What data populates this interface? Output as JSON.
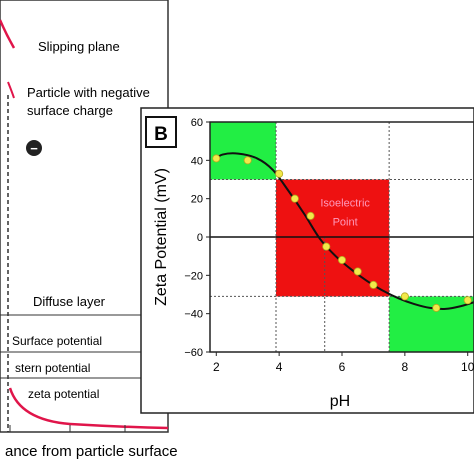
{
  "left_panel": {
    "slipping_plane": "Slipping plane",
    "particle_label_1": "Particle with negative",
    "particle_label_2": "surface charge",
    "particle_symbol": "−",
    "diffuse_layer": "Diffuse layer",
    "surface_potential": "Surface potential",
    "stern_potential": "stern potential",
    "zeta_potential": "zeta potential",
    "xlabel": "ance from particle surface"
  },
  "chart_data": {
    "type": "scatter",
    "panel_label": "B",
    "xlabel": "pH",
    "ylabel": "Zeta Potential (mV)",
    "xlim": [
      1.8,
      10.2
    ],
    "ylim": [
      -60,
      60
    ],
    "x_ticks": [
      2,
      4,
      6,
      8,
      10
    ],
    "x_tick_labels": [
      "2",
      "4",
      "6",
      "8",
      "10"
    ],
    "y_ticks": [
      -60,
      -40,
      -20,
      0,
      20,
      40,
      60
    ],
    "y_tick_labels": [
      "−60",
      "−40",
      "−20",
      "0",
      "20",
      "40",
      "60"
    ],
    "points": [
      {
        "x": 2.0,
        "y": 41
      },
      {
        "x": 3.0,
        "y": 40
      },
      {
        "x": 4.0,
        "y": 33
      },
      {
        "x": 4.5,
        "y": 20
      },
      {
        "x": 5.0,
        "y": 11
      },
      {
        "x": 5.5,
        "y": -5
      },
      {
        "x": 6.0,
        "y": -12
      },
      {
        "x": 6.5,
        "y": -18
      },
      {
        "x": 7.0,
        "y": -25
      },
      {
        "x": 8.0,
        "y": -31
      },
      {
        "x": 9.0,
        "y": -37
      },
      {
        "x": 10.0,
        "y": -33
      }
    ],
    "curve": [
      [
        1.9,
        40
      ],
      [
        2.2,
        43
      ],
      [
        2.7,
        43.5
      ],
      [
        3.3,
        41
      ],
      [
        3.8,
        35
      ],
      [
        4.3,
        24
      ],
      [
        4.8,
        12
      ],
      [
        5.3,
        -1
      ],
      [
        5.8,
        -10
      ],
      [
        6.3,
        -17
      ],
      [
        6.8,
        -23
      ],
      [
        7.3,
        -28
      ],
      [
        7.8,
        -32
      ],
      [
        8.3,
        -35
      ],
      [
        8.8,
        -37
      ],
      [
        9.3,
        -37.5
      ],
      [
        9.8,
        -36
      ],
      [
        10.2,
        -34
      ]
    ],
    "annotation_line1": "Isoelectric",
    "annotation_line2": "Point",
    "regions": [
      {
        "name": "green-top",
        "x0": 1.8,
        "x1": 3.9,
        "y0": 30,
        "y1": 60,
        "color": "#22ee44"
      },
      {
        "name": "red-middle",
        "x0": 3.9,
        "x1": 7.5,
        "y0": -31,
        "y1": 30,
        "color": "#ee1111"
      },
      {
        "name": "green-bottom",
        "x0": 7.5,
        "x1": 10.2,
        "y0": -60,
        "y1": -31,
        "color": "#22ee44"
      }
    ],
    "colors": {
      "point": "#f2e94a",
      "curve": "#111111",
      "annotation": "#ff99bb"
    }
  }
}
